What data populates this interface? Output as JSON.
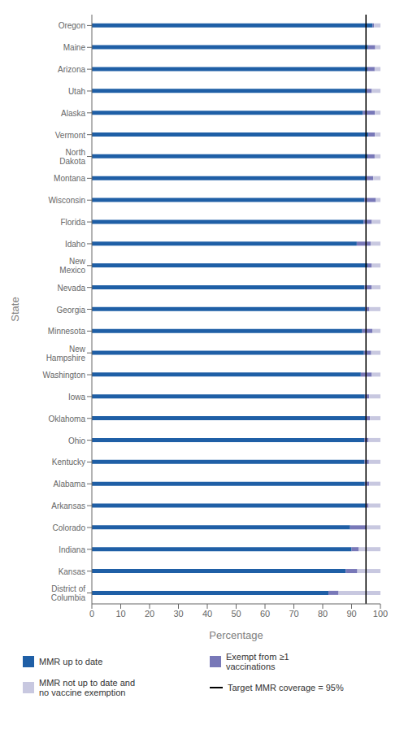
{
  "chart_data": {
    "type": "bar",
    "orientation": "horizontal",
    "stacked": true,
    "grid": false,
    "legend": "bottom",
    "categories": [
      "District of\nColumbia",
      "Kansas",
      "Indiana",
      "Colorado",
      "Arkansas",
      "Alabama",
      "Kentucky",
      "Ohio",
      "Oklahoma",
      "Iowa",
      "Washington",
      "New\nHampshire",
      "Minnesota",
      "Georgia",
      "Nevada",
      "New\nMexico",
      "Idaho",
      "Florida",
      "Wisconsin",
      "Montana",
      "North\nDakota",
      "Vermont",
      "Alaska",
      "Utah",
      "Arizona",
      "Maine",
      "Oregon"
    ],
    "series": [
      {
        "name": "MMR up to date",
        "color": "#1f5fa6",
        "values": [
          82.0,
          88.0,
          90.0,
          89.5,
          94.9,
          94.6,
          94.5,
          94.4,
          94.9,
          94.6,
          93.2,
          94.3,
          93.7,
          94.7,
          94.5,
          95.5,
          91.8,
          94.2,
          94.4,
          95.0,
          95.5,
          95.8,
          93.9,
          95.0,
          95.5,
          95.7,
          97.3
        ]
      },
      {
        "name": "Exempt from ≥1\nvaccinations",
        "color": "#7878b8",
        "values": [
          3.5,
          4.0,
          2.5,
          5.5,
          1.0,
          1.5,
          1.5,
          1.5,
          1.5,
          1.5,
          3.8,
          2.5,
          3.5,
          1.5,
          2.5,
          1.5,
          4.8,
          2.8,
          4.0,
          2.5,
          2.5,
          2.3,
          4.2,
          2.0,
          2.5,
          2.5,
          0.5
        ]
      },
      {
        "name": "MMR not up to date and\nno vaccine exemption",
        "color": "#c8c8e0",
        "values": [
          14.5,
          8.0,
          7.5,
          5.0,
          4.1,
          3.9,
          4.0,
          4.1,
          3.6,
          3.9,
          3.0,
          3.2,
          2.8,
          3.8,
          3.0,
          3.0,
          3.4,
          3.0,
          1.6,
          2.5,
          2.0,
          1.9,
          1.9,
          3.0,
          2.0,
          1.8,
          2.2
        ]
      }
    ],
    "target_line": {
      "value": 95,
      "label": "Target MMR coverage = 95%",
      "color": "#000000"
    },
    "xlim": [
      0,
      100
    ],
    "xticks": [
      0,
      10,
      20,
      30,
      40,
      50,
      60,
      70,
      80,
      90,
      100
    ],
    "xlabel": "Percentage",
    "ylabel": "State"
  }
}
